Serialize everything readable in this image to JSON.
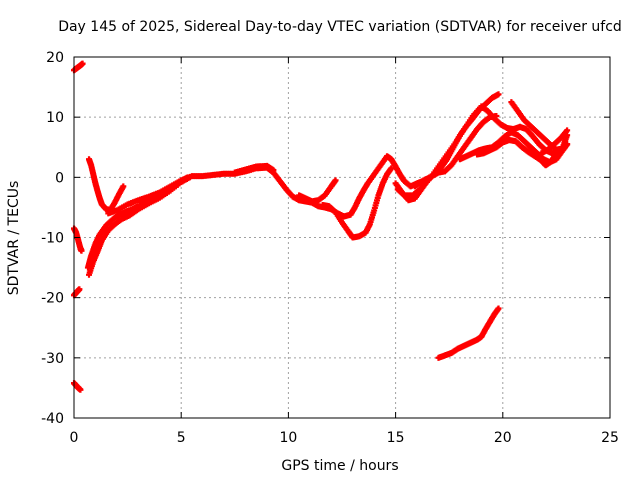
{
  "chart_data": {
    "type": "scatter",
    "title": "Day 145 of 2025, Sidereal Day-to-day VTEC variation (SDTVAR) for receiver ufcd",
    "xlabel": "GPS time / hours",
    "ylabel": "SDTVAR / TECUs",
    "xlim": [
      0,
      25
    ],
    "ylim": [
      -40,
      20
    ],
    "xticks": [
      0,
      5,
      10,
      15,
      20,
      25
    ],
    "yticks": [
      -40,
      -30,
      -20,
      -10,
      0,
      10,
      20
    ],
    "grid": true,
    "marker": "plus",
    "series_color": "#ff0000",
    "series": [
      {
        "name": "arc-1",
        "points": [
          [
            0.0,
            17.8
          ],
          [
            0.15,
            18.2
          ],
          [
            0.3,
            18.6
          ],
          [
            0.4,
            18.9
          ]
        ]
      },
      {
        "name": "arc-2",
        "points": [
          [
            0.0,
            -8.5
          ],
          [
            0.1,
            -9.2
          ],
          [
            0.2,
            -10.5
          ],
          [
            0.3,
            -11.8
          ],
          [
            0.35,
            -12.2
          ]
        ]
      },
      {
        "name": "arc-3",
        "points": [
          [
            0.0,
            -19.6
          ],
          [
            0.1,
            -19.2
          ],
          [
            0.2,
            -18.8
          ],
          [
            0.25,
            -18.6
          ]
        ]
      },
      {
        "name": "arc-4",
        "points": [
          [
            0.0,
            -34.2
          ],
          [
            0.1,
            -34.6
          ],
          [
            0.2,
            -35.0
          ],
          [
            0.3,
            -35.3
          ]
        ]
      },
      {
        "name": "arc-5",
        "points": [
          [
            0.7,
            3.0
          ],
          [
            0.8,
            2.0
          ],
          [
            0.9,
            0.5
          ],
          [
            1.0,
            -1.0
          ],
          [
            1.1,
            -2.3
          ],
          [
            1.2,
            -3.5
          ],
          [
            1.3,
            -4.5
          ],
          [
            1.5,
            -5.3
          ],
          [
            1.7,
            -5.4
          ],
          [
            1.9,
            -4.2
          ],
          [
            2.1,
            -2.8
          ],
          [
            2.3,
            -1.5
          ]
        ]
      },
      {
        "name": "arc-6",
        "points": [
          [
            0.65,
            -15.0
          ],
          [
            0.8,
            -13.0
          ],
          [
            1.0,
            -11.0
          ],
          [
            1.2,
            -9.5
          ],
          [
            1.5,
            -8.0
          ],
          [
            1.8,
            -7.0
          ],
          [
            2.1,
            -6.2
          ],
          [
            2.5,
            -5.6
          ],
          [
            3.0,
            -4.8
          ],
          [
            3.5,
            -4.0
          ],
          [
            4.0,
            -3.0
          ],
          [
            4.5,
            -1.8
          ],
          [
            5.0,
            -0.6
          ],
          [
            5.3,
            0.0
          ]
        ]
      },
      {
        "name": "arc-7",
        "points": [
          [
            0.7,
            -16.2
          ],
          [
            0.9,
            -14.0
          ],
          [
            1.1,
            -12.3
          ],
          [
            1.3,
            -10.5
          ],
          [
            1.6,
            -8.8
          ],
          [
            1.9,
            -7.8
          ],
          [
            2.2,
            -7.0
          ],
          [
            2.6,
            -6.3
          ],
          [
            3.0,
            -5.3
          ],
          [
            3.5,
            -4.3
          ],
          [
            4.0,
            -3.4
          ],
          [
            4.5,
            -2.2
          ],
          [
            5.0,
            -0.8
          ],
          [
            5.4,
            0.0
          ]
        ]
      },
      {
        "name": "arc-8",
        "points": [
          [
            1.6,
            -6.0
          ],
          [
            2.0,
            -5.5
          ],
          [
            2.5,
            -4.5
          ],
          [
            3.0,
            -3.8
          ],
          [
            3.5,
            -3.2
          ],
          [
            4.0,
            -2.5
          ],
          [
            4.5,
            -1.5
          ],
          [
            5.0,
            -0.5
          ],
          [
            5.5,
            0.2
          ],
          [
            6.0,
            0.2
          ],
          [
            6.5,
            0.4
          ],
          [
            7.0,
            0.6
          ],
          [
            7.5,
            0.6
          ],
          [
            8.0,
            1.0
          ],
          [
            8.5,
            1.5
          ],
          [
            9.0,
            1.6
          ],
          [
            9.3,
            0.8
          ],
          [
            9.6,
            -0.6
          ],
          [
            9.9,
            -2.0
          ],
          [
            10.2,
            -3.2
          ],
          [
            10.5,
            -3.8
          ],
          [
            10.8,
            -4.0
          ],
          [
            11.1,
            -4.2
          ],
          [
            11.4,
            -4.8
          ],
          [
            11.7,
            -5.0
          ],
          [
            12.0,
            -5.3
          ],
          [
            12.3,
            -6.0
          ],
          [
            12.6,
            -6.5
          ],
          [
            12.9,
            -6.2
          ],
          [
            13.1,
            -5.0
          ],
          [
            13.3,
            -3.5
          ],
          [
            13.5,
            -2.2
          ],
          [
            13.7,
            -1.0
          ],
          [
            14.0,
            0.5
          ],
          [
            14.3,
            2.0
          ],
          [
            14.6,
            3.5
          ],
          [
            14.8,
            3.0
          ],
          [
            15.0,
            1.8
          ],
          [
            15.2,
            0.5
          ],
          [
            15.4,
            -0.6
          ],
          [
            15.7,
            -1.5
          ],
          [
            16.0,
            -1.0
          ],
          [
            16.3,
            -0.6
          ]
        ]
      },
      {
        "name": "arc-9",
        "points": [
          [
            7.5,
            0.8
          ],
          [
            8.0,
            1.3
          ],
          [
            8.5,
            1.8
          ],
          [
            9.0,
            1.9
          ],
          [
            9.3,
            1.2
          ]
        ]
      },
      {
        "name": "arc-10",
        "points": [
          [
            10.5,
            -3.0
          ],
          [
            10.8,
            -3.5
          ],
          [
            11.1,
            -4.0
          ],
          [
            11.4,
            -3.8
          ],
          [
            11.7,
            -3.0
          ],
          [
            12.0,
            -1.5
          ],
          [
            12.2,
            -0.5
          ]
        ]
      },
      {
        "name": "arc-11",
        "points": [
          [
            11.6,
            -4.6
          ],
          [
            11.9,
            -4.8
          ],
          [
            12.2,
            -5.8
          ],
          [
            12.5,
            -7.5
          ],
          [
            12.8,
            -9.0
          ],
          [
            13.0,
            -10.0
          ],
          [
            13.3,
            -9.8
          ],
          [
            13.6,
            -9.2
          ],
          [
            13.8,
            -7.8
          ],
          [
            14.0,
            -5.5
          ],
          [
            14.2,
            -3.0
          ],
          [
            14.4,
            -1.0
          ],
          [
            14.6,
            0.5
          ],
          [
            14.8,
            1.5
          ]
        ]
      },
      {
        "name": "arc-12",
        "points": [
          [
            15.0,
            -1.0
          ],
          [
            15.3,
            -2.5
          ],
          [
            15.6,
            -3.8
          ],
          [
            15.9,
            -3.5
          ],
          [
            16.2,
            -2.0
          ],
          [
            16.5,
            -0.5
          ],
          [
            16.8,
            0.5
          ],
          [
            17.1,
            1.5
          ],
          [
            17.4,
            3.0
          ],
          [
            17.7,
            5.0
          ],
          [
            18.0,
            7.0
          ],
          [
            18.3,
            8.5
          ],
          [
            18.6,
            9.8
          ],
          [
            18.9,
            11.2
          ],
          [
            19.2,
            12.2
          ],
          [
            19.5,
            13.2
          ],
          [
            19.8,
            13.8
          ]
        ]
      },
      {
        "name": "arc-13",
        "points": [
          [
            15.1,
            -2.0
          ],
          [
            15.4,
            -3.0
          ],
          [
            15.8,
            -3.0
          ],
          [
            16.2,
            -1.8
          ],
          [
            16.6,
            -0.2
          ],
          [
            17.0,
            1.8
          ],
          [
            17.4,
            3.8
          ],
          [
            17.8,
            5.8
          ],
          [
            18.2,
            8.0
          ],
          [
            18.6,
            10.2
          ],
          [
            19.0,
            11.8
          ],
          [
            19.3,
            11.0
          ],
          [
            19.6,
            9.8
          ],
          [
            19.9,
            8.8
          ],
          [
            20.2,
            8.2
          ],
          [
            20.5,
            8.0
          ],
          [
            20.8,
            8.4
          ],
          [
            21.1,
            8.0
          ],
          [
            21.4,
            6.8
          ],
          [
            21.7,
            5.5
          ],
          [
            22.0,
            4.5
          ],
          [
            22.3,
            4.0
          ],
          [
            22.6,
            4.5
          ],
          [
            22.9,
            5.0
          ]
        ]
      },
      {
        "name": "arc-14",
        "points": [
          [
            15.9,
            -1.5
          ],
          [
            16.3,
            -0.5
          ],
          [
            16.7,
            0.2
          ],
          [
            17.0,
            0.8
          ],
          [
            17.3,
            1.0
          ],
          [
            17.6,
            2.0
          ],
          [
            17.9,
            3.5
          ],
          [
            18.2,
            5.0
          ],
          [
            18.5,
            6.5
          ],
          [
            18.8,
            8.0
          ],
          [
            19.1,
            9.2
          ],
          [
            19.4,
            10.0
          ],
          [
            19.7,
            10.2
          ]
        ]
      },
      {
        "name": "arc-15",
        "points": [
          [
            18.0,
            3.0
          ],
          [
            18.3,
            3.5
          ],
          [
            18.6,
            4.0
          ],
          [
            18.9,
            4.5
          ],
          [
            19.2,
            4.8
          ],
          [
            19.5,
            5.0
          ],
          [
            19.8,
            5.8
          ],
          [
            20.1,
            6.8
          ],
          [
            20.4,
            7.5
          ],
          [
            20.7,
            7.0
          ],
          [
            21.0,
            6.0
          ],
          [
            21.3,
            5.0
          ],
          [
            21.6,
            4.0
          ],
          [
            21.9,
            3.0
          ],
          [
            22.2,
            2.5
          ],
          [
            22.5,
            3.0
          ],
          [
            22.8,
            4.5
          ],
          [
            23.0,
            5.5
          ]
        ]
      },
      {
        "name": "arc-16",
        "points": [
          [
            18.8,
            3.8
          ],
          [
            19.1,
            4.0
          ],
          [
            19.4,
            4.5
          ],
          [
            19.7,
            5.0
          ],
          [
            20.0,
            5.8
          ],
          [
            20.3,
            6.2
          ],
          [
            20.6,
            6.0
          ],
          [
            20.9,
            5.0
          ],
          [
            21.2,
            4.2
          ],
          [
            21.5,
            3.5
          ],
          [
            21.8,
            2.8
          ],
          [
            22.0,
            2.0
          ],
          [
            22.2,
            2.5
          ],
          [
            22.5,
            3.8
          ],
          [
            22.8,
            5.0
          ],
          [
            23.0,
            7.0
          ]
        ]
      },
      {
        "name": "arc-17",
        "points": [
          [
            20.4,
            12.5
          ],
          [
            20.7,
            11.0
          ],
          [
            21.0,
            9.5
          ],
          [
            21.3,
            8.5
          ],
          [
            21.6,
            7.5
          ],
          [
            21.9,
            6.5
          ],
          [
            22.2,
            5.5
          ],
          [
            22.5,
            4.6
          ],
          [
            22.8,
            4.8
          ],
          [
            23.0,
            5.5
          ]
        ]
      },
      {
        "name": "arc-18",
        "points": [
          [
            21.8,
            4.0
          ],
          [
            22.1,
            4.6
          ],
          [
            22.4,
            5.5
          ],
          [
            22.7,
            6.5
          ],
          [
            23.0,
            7.8
          ]
        ]
      },
      {
        "name": "arc-19",
        "points": [
          [
            17.0,
            -30.0
          ],
          [
            17.3,
            -29.6
          ],
          [
            17.6,
            -29.2
          ],
          [
            17.9,
            -28.5
          ],
          [
            18.2,
            -28.0
          ],
          [
            18.5,
            -27.5
          ],
          [
            18.8,
            -27.0
          ],
          [
            19.0,
            -26.5
          ],
          [
            19.2,
            -25.2
          ],
          [
            19.4,
            -24.0
          ],
          [
            19.6,
            -22.8
          ],
          [
            19.8,
            -21.8
          ]
        ]
      }
    ]
  }
}
